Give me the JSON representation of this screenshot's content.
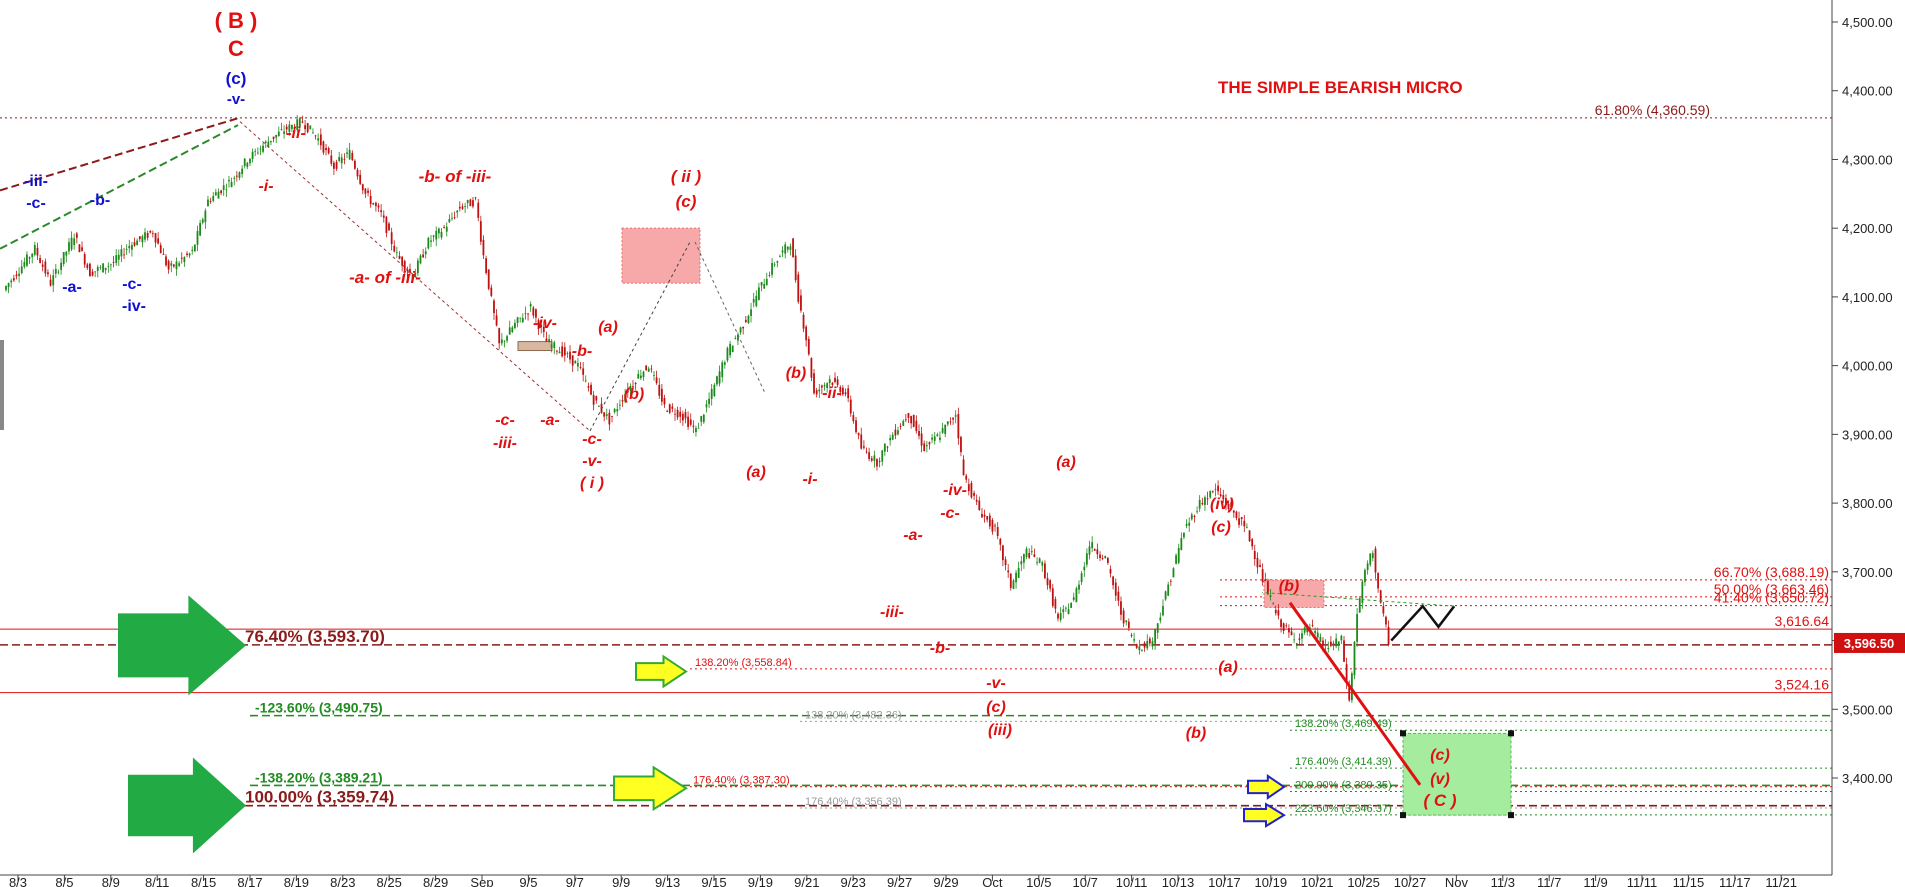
{
  "chart_data": {
    "type": "candlestick",
    "title": "THE SIMPLE BEARISH MICRO",
    "ylim": [
      3320,
      4530
    ],
    "y_ticks": [
      "4,500.00",
      "4,400.00",
      "4,300.00",
      "4,200.00",
      "4,100.00",
      "4,000.00",
      "3,900.00",
      "3,800.00",
      "3,700.00",
      "3,600.00",
      "3,500.00",
      "3,400.00"
    ],
    "y_tick_values": [
      4500,
      4400,
      4300,
      4200,
      4100,
      4000,
      3900,
      3800,
      3700,
      3600,
      3500,
      3400
    ],
    "x_ticks": [
      "8/3",
      "8/5",
      "8/9",
      "8/11",
      "8/15",
      "8/17",
      "8/19",
      "8/23",
      "8/25",
      "8/29",
      "Sep",
      "9/5",
      "9/7",
      "9/9",
      "9/13",
      "9/15",
      "9/19",
      "9/21",
      "9/23",
      "9/27",
      "9/29",
      "Oct",
      "10/5",
      "10/7",
      "10/11",
      "10/13",
      "10/17",
      "10/19",
      "10/21",
      "10/25",
      "10/27",
      "Nov",
      "11/3",
      "11/7",
      "11/9",
      "11/11",
      "11/15",
      "11/17",
      "11/21"
    ],
    "current_price": "3,596.50",
    "price_path": [
      [
        0,
        4110
      ],
      [
        4,
        4170
      ],
      [
        6,
        4120
      ],
      [
        9,
        4190
      ],
      [
        11,
        4135
      ],
      [
        14,
        4150
      ],
      [
        16,
        4175
      ],
      [
        19,
        4195
      ],
      [
        21,
        4140
      ],
      [
        24,
        4165
      ],
      [
        26,
        4240
      ],
      [
        29,
        4270
      ],
      [
        31,
        4300
      ],
      [
        34,
        4330
      ],
      [
        36,
        4345
      ],
      [
        38,
        4355
      ],
      [
        40,
        4330
      ],
      [
        42,
        4290
      ],
      [
        44,
        4310
      ],
      [
        46,
        4250
      ],
      [
        48,
        4220
      ],
      [
        50,
        4160
      ],
      [
        52,
        4130
      ],
      [
        54,
        4180
      ],
      [
        56,
        4200
      ],
      [
        58,
        4230
      ],
      [
        60,
        4240
      ],
      [
        61,
        4160
      ],
      [
        63,
        4030
      ],
      [
        65,
        4060
      ],
      [
        67,
        4085
      ],
      [
        69,
        4035
      ],
      [
        71,
        4020
      ],
      [
        73,
        4000
      ],
      [
        75,
        3950
      ],
      [
        77,
        3920
      ],
      [
        79,
        3960
      ],
      [
        81,
        3990
      ],
      [
        82,
        4000
      ],
      [
        84,
        3940
      ],
      [
        86,
        3930
      ],
      [
        88,
        3905
      ],
      [
        90,
        3960
      ],
      [
        92,
        4020
      ],
      [
        94,
        4060
      ],
      [
        96,
        4110
      ],
      [
        98,
        4150
      ],
      [
        100,
        4180
      ],
      [
        101,
        4100
      ],
      [
        102,
        4040
      ],
      [
        103,
        3960
      ],
      [
        105,
        3980
      ],
      [
        107,
        3960
      ],
      [
        109,
        3880
      ],
      [
        111,
        3860
      ],
      [
        113,
        3900
      ],
      [
        115,
        3930
      ],
      [
        117,
        3880
      ],
      [
        119,
        3900
      ],
      [
        121,
        3930
      ],
      [
        122,
        3840
      ],
      [
        124,
        3790
      ],
      [
        126,
        3760
      ],
      [
        128,
        3680
      ],
      [
        130,
        3730
      ],
      [
        132,
        3710
      ],
      [
        134,
        3630
      ],
      [
        136,
        3660
      ],
      [
        138,
        3740
      ],
      [
        140,
        3720
      ],
      [
        142,
        3640
      ],
      [
        144,
        3590
      ],
      [
        146,
        3600
      ],
      [
        148,
        3680
      ],
      [
        150,
        3760
      ],
      [
        152,
        3800
      ],
      [
        154,
        3820
      ],
      [
        156,
        3790
      ],
      [
        158,
        3760
      ],
      [
        160,
        3690
      ],
      [
        162,
        3630
      ],
      [
        164,
        3600
      ],
      [
        166,
        3620
      ],
      [
        168,
        3590
      ],
      [
        170,
        3600
      ],
      [
        171,
        3510
      ],
      [
        172,
        3640
      ],
      [
        173,
        3700
      ],
      [
        174,
        3730
      ],
      [
        175,
        3650
      ],
      [
        176,
        3600
      ]
    ],
    "projection": [
      [
        176,
        3600
      ],
      [
        178,
        3625
      ],
      [
        180,
        3650
      ],
      [
        182,
        3620
      ],
      [
        184,
        3650
      ]
    ],
    "projection_drop": [
      [
        189,
        3655
      ],
      [
        203,
        3390
      ]
    ],
    "horizontal_levels": [
      {
        "label": "61.80% (4,360.59)",
        "value": 4360.59,
        "color": "#8b1a1a",
        "style": "dotted"
      },
      {
        "label": "66.70% (3,688.19)",
        "value": 3688.19,
        "color": "#e01010",
        "style": "dotted"
      },
      {
        "label": "50.00% (3,663.46)",
        "value": 3663.46,
        "color": "#e01010",
        "style": "dotted"
      },
      {
        "label": "41.40% (3,650.72)",
        "value": 3650.72,
        "color": "#e01010",
        "style": "dotted"
      },
      {
        "label": "3,616.64",
        "value": 3616.64,
        "color": "#e01010",
        "style": "solid"
      },
      {
        "label": "76.40% (3,593.70)",
        "value": 3593.7,
        "color": "#8b1a1a",
        "style": "dashed"
      },
      {
        "label": "138.20% (3,558.84)",
        "value": 3558.84,
        "color": "#e01010",
        "style": "dotted"
      },
      {
        "label": "3,524.16",
        "value": 3524.16,
        "color": "#e01010",
        "style": "solid"
      },
      {
        "label": "-123.60% (3,490.75)",
        "value": 3490.75,
        "color": "#228b22",
        "style": "dashed"
      },
      {
        "label": "138.20% (3,482.36)",
        "value": 3482.36,
        "color": "#999999",
        "style": "dotted"
      },
      {
        "label": "138.20% (3,469.49)",
        "value": 3469.49,
        "color": "#228b22",
        "style": "dotted"
      },
      {
        "label": "176.40% (3,414.39)",
        "value": 3414.39,
        "color": "#228b22",
        "style": "dotted"
      },
      {
        "label": "-138.20% (3,389.21)",
        "value": 3389.21,
        "color": "#228b22",
        "style": "dashed"
      },
      {
        "label": "176.40% (3,387.30)",
        "value": 3387.3,
        "color": "#e01010",
        "style": "dotted"
      },
      {
        "label": "200.00% (3,380.35)",
        "value": 3380.35,
        "color": "#228b22",
        "style": "dotted"
      },
      {
        "label": "100.00% (3,359.74)",
        "value": 3359.74,
        "color": "#8b1a1a",
        "style": "dashed"
      },
      {
        "label": "176.40% (3,356.39)",
        "value": 3356.39,
        "color": "#999999",
        "style": "dotted"
      },
      {
        "label": "223.60% (3,346.37)",
        "value": 3346.37,
        "color": "#228b22",
        "style": "dotted"
      }
    ],
    "wave_labels": [
      {
        "text": "( B )",
        "x": 30,
        "y": 4495,
        "color": "red-upright",
        "size": 22
      },
      {
        "text": "C",
        "x": 30,
        "y": 4455,
        "color": "red-upright",
        "size": 22
      },
      {
        "text": "(c)",
        "x": 30,
        "y": 4405,
        "color": "blue",
        "size": 17
      },
      {
        "text": "-v-",
        "x": 30,
        "y": 4375,
        "color": "blue",
        "size": 15
      },
      {
        "text": "-iii-",
        "x": 4,
        "y": 4255,
        "color": "blue",
        "size": 16
      },
      {
        "text": "-c-",
        "x": 4,
        "y": 4225,
        "color": "blue",
        "size": 16
      },
      {
        "text": "-b-",
        "x": 12,
        "y": 4220,
        "color": "blue",
        "size": 16
      },
      {
        "text": "-a-",
        "x": 8,
        "y": 4095,
        "color": "blue",
        "size": 16
      },
      {
        "text": "-c-",
        "x": 16,
        "y": 4100,
        "color": "blue",
        "size": 16
      },
      {
        "text": "-iv-",
        "x": 16,
        "y": 4070,
        "color": "blue",
        "size": 16
      },
      {
        "text": "-ii-",
        "x": 38,
        "y": 4330,
        "color": "red",
        "size": 16
      },
      {
        "text": "-i-",
        "x": 34,
        "y": 4255,
        "color": "red",
        "size": 16
      },
      {
        "text": "-b- of -iii-",
        "x": 58,
        "y": 4260,
        "color": "red",
        "size": 17
      },
      {
        "text": "-a- of -iii-",
        "x": 45,
        "y": 4100,
        "color": "red",
        "size": 17
      },
      {
        "text": "( ii )",
        "x": 98,
        "y": 4260,
        "color": "red",
        "size": 17
      },
      {
        "text": "(c)",
        "x": 98,
        "y": 4225,
        "color": "red",
        "size": 17
      },
      {
        "text": "-iv-",
        "x": 80,
        "y": 4035,
        "color": "red",
        "size": 16
      },
      {
        "text": "(a)",
        "x": 90,
        "y": 4030,
        "color": "red",
        "size": 16
      },
      {
        "text": "-b-",
        "x": 84,
        "y": 3995,
        "color": "red",
        "size": 16
      },
      {
        "text": "(b)",
        "x": 93,
        "y": 3935,
        "color": "red",
        "size": 16
      },
      {
        "text": "-c-",
        "x": 73,
        "y": 3905,
        "color": "red",
        "size": 16
      },
      {
        "text": "-iii-",
        "x": 73,
        "y": 3870,
        "color": "red",
        "size": 16
      },
      {
        "text": "-a-",
        "x": 80,
        "y": 3905,
        "color": "red",
        "size": 16
      },
      {
        "text": "-c-",
        "x": 86,
        "y": 3880,
        "color": "red",
        "size": 16
      },
      {
        "text": "-v-",
        "x": 86,
        "y": 3850,
        "color": "red",
        "size": 16
      },
      {
        "text": "( i )",
        "x": 86,
        "y": 3820,
        "color": "red",
        "size": 16
      },
      {
        "text": "(b)",
        "x": 118,
        "y": 3960,
        "color": "red",
        "size": 16
      },
      {
        "text": "-ii-",
        "x": 123,
        "y": 3935,
        "color": "red",
        "size": 16
      },
      {
        "text": "(a)",
        "x": 112,
        "y": 3830,
        "color": "red",
        "size": 16
      },
      {
        "text": "-i-",
        "x": 120,
        "y": 3820,
        "color": "red",
        "size": 16
      },
      {
        "text": "-iv-",
        "x": 142,
        "y": 3810,
        "color": "red",
        "size": 16
      },
      {
        "text": "-c-",
        "x": 142,
        "y": 3780,
        "color": "red",
        "size": 16
      },
      {
        "text": "-a-",
        "x": 136,
        "y": 3745,
        "color": "red",
        "size": 16
      },
      {
        "text": "(a)",
        "x": 158,
        "y": 3835,
        "color": "red",
        "size": 16
      },
      {
        "text": "-iii-",
        "x": 132,
        "y": 3620,
        "color": "red",
        "size": 16
      },
      {
        "text": "-b-",
        "x": 140,
        "y": 3565,
        "color": "red",
        "size": 16
      },
      {
        "text": "-v-",
        "x": 149,
        "y": 3535,
        "color": "red",
        "size": 16
      },
      {
        "text": "(c)",
        "x": 149,
        "y": 3505,
        "color": "red",
        "size": 16
      },
      {
        "text": "(iii)",
        "x": 149,
        "y": 3475,
        "color": "red",
        "size": 16
      },
      {
        "text": "(iv)",
        "x": 183,
        "y": 3785,
        "color": "red",
        "size": 16
      },
      {
        "text": "(c)",
        "x": 183,
        "y": 3755,
        "color": "red",
        "size": 16
      },
      {
        "text": "(a)",
        "x": 183,
        "y": 3580,
        "color": "red",
        "size": 16
      },
      {
        "text": "(b)",
        "x": 179,
        "y": 3465,
        "color": "red",
        "size": 16
      },
      {
        "text": "(b)",
        "x": 193,
        "y": 3665,
        "color": "red",
        "size": 16
      },
      {
        "text": "(c)",
        "x": 216,
        "y": 3445,
        "color": "red",
        "size": 16
      },
      {
        "text": "(v)",
        "x": 216,
        "y": 3415,
        "color": "red",
        "size": 16
      },
      {
        "text": "( C )",
        "x": 216,
        "y": 3385,
        "color": "red",
        "size": 17
      }
    ]
  }
}
